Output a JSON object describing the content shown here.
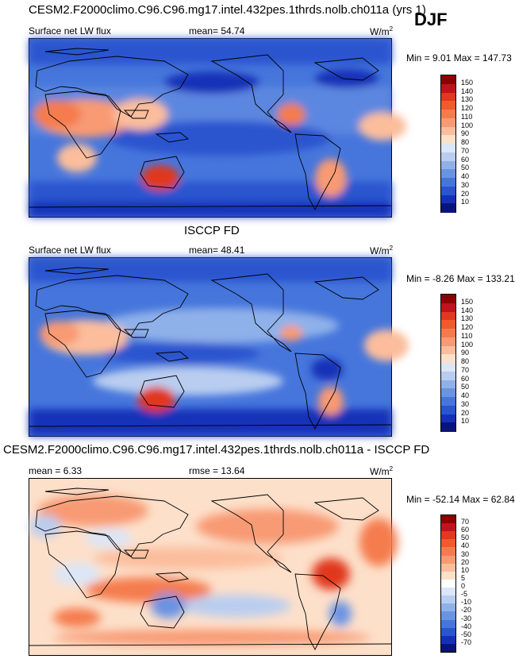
{
  "season": "DJF",
  "panels": [
    {
      "id": "model",
      "title": "CESM2.F2000climo.C96.C96.mg17.intel.432pes.1thrds.nolb.ch011a (yrs 1)",
      "left_label": "Surface net LW flux",
      "center_label": "mean=  54.74",
      "units_base": "W/m",
      "units_sup": "2",
      "minmax": "Min =  9.01 Max = 147.73",
      "colorbar": {
        "levels": [
          "150",
          "140",
          "130",
          "120",
          "110",
          "100",
          "90",
          "80",
          "70",
          "60",
          "50",
          "40",
          "30",
          "20",
          "10"
        ],
        "colors": [
          "#8b0000",
          "#c1121f",
          "#e0391f",
          "#f05a2c",
          "#f57b4d",
          "#f89a73",
          "#fbbd9c",
          "#fde0ca",
          "#dbe6f7",
          "#b9cdf0",
          "#8fb1ea",
          "#6a93e3",
          "#4676dc",
          "#2a55cf",
          "#1530b8",
          "#08137e"
        ]
      }
    },
    {
      "id": "obs",
      "title": "ISCCP FD",
      "left_label": "Surface net LW flux",
      "center_label": "mean=  48.41",
      "units_base": "W/m",
      "units_sup": "2",
      "minmax": "Min = -8.26 Max = 133.21",
      "colorbar": {
        "levels": [
          "150",
          "140",
          "130",
          "120",
          "110",
          "100",
          "90",
          "80",
          "70",
          "60",
          "50",
          "40",
          "30",
          "20",
          "10"
        ],
        "colors": [
          "#8b0000",
          "#c1121f",
          "#e0391f",
          "#f05a2c",
          "#f57b4d",
          "#f89a73",
          "#fbbd9c",
          "#fde0ca",
          "#dbe6f7",
          "#b9cdf0",
          "#8fb1ea",
          "#6a93e3",
          "#4676dc",
          "#2a55cf",
          "#1530b8",
          "#08137e"
        ]
      }
    },
    {
      "id": "diff",
      "title": "CESM2.F2000climo.C96.C96.mg17.intel.432pes.1thrds.nolb.ch011a - ISCCP FD",
      "left_label": "mean =   6.33",
      "center_label": "rmse =  13.64",
      "units_base": "W/m",
      "units_sup": "2",
      "minmax": "Min = -52.14 Max =  62.84",
      "colorbar": {
        "levels": [
          "70",
          "60",
          "50",
          "40",
          "30",
          "20",
          "10",
          "5",
          "0",
          "-5",
          "-10",
          "-20",
          "-30",
          "-40",
          "-50",
          "-70"
        ],
        "colors": [
          "#8b0000",
          "#c1121f",
          "#e0391f",
          "#f05a2c",
          "#f57b4d",
          "#f89a73",
          "#fbbd9c",
          "#fde0ca",
          "#ffffff",
          "#dbe6f7",
          "#b9cdf0",
          "#8fb1ea",
          "#6a93e3",
          "#4676dc",
          "#2a55cf",
          "#1530b8",
          "#08137e"
        ]
      }
    }
  ],
  "chart_data": [
    {
      "type": "heatmap",
      "title": "CESM2.F2000climo.C96.C96.mg17.intel.432pes.1thrds.nolb.ch011a (yrs 1)",
      "variable": "Surface net LW flux",
      "units": "W/m2",
      "mean": 54.74,
      "min": 9.01,
      "max": 147.73,
      "contour_levels": [
        10,
        20,
        30,
        40,
        50,
        60,
        70,
        80,
        90,
        100,
        110,
        120,
        130,
        140,
        150
      ]
    },
    {
      "type": "heatmap",
      "title": "ISCCP FD",
      "variable": "Surface net LW flux",
      "units": "W/m2",
      "mean": 48.41,
      "min": -8.26,
      "max": 133.21,
      "contour_levels": [
        10,
        20,
        30,
        40,
        50,
        60,
        70,
        80,
        90,
        100,
        110,
        120,
        130,
        140,
        150
      ]
    },
    {
      "type": "heatmap",
      "title": "CESM2.F2000climo.C96.C96.mg17.intel.432pes.1thrds.nolb.ch011a - ISCCP FD",
      "units": "W/m2",
      "mean": 6.33,
      "rmse": 13.64,
      "min": -52.14,
      "max": 62.84,
      "contour_levels": [
        -70,
        -50,
        -40,
        -30,
        -20,
        -10,
        -5,
        0,
        5,
        10,
        20,
        30,
        40,
        50,
        60,
        70
      ]
    }
  ]
}
